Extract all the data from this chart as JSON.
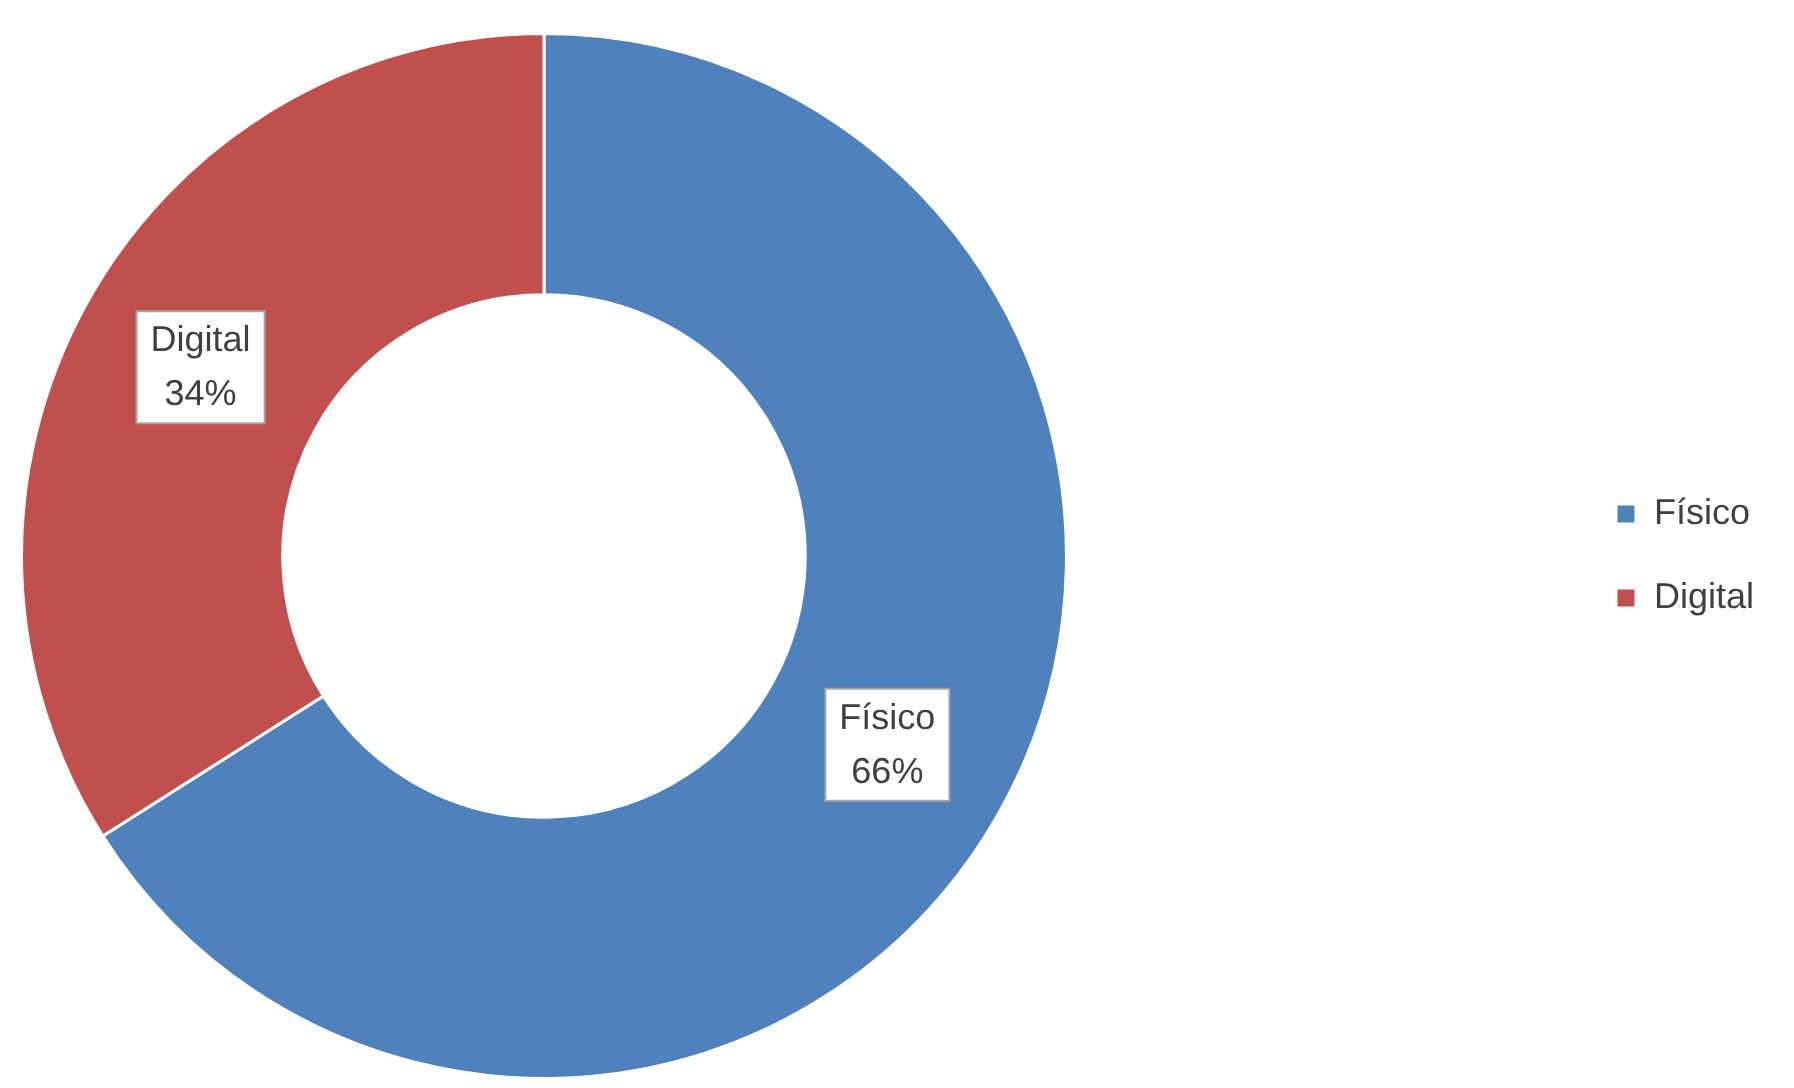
{
  "chart_data": {
    "type": "donut",
    "categories": [
      "Físico",
      "Digital"
    ],
    "values": [
      66,
      34
    ],
    "colors": [
      "#4f81bd",
      "#c0504d"
    ],
    "value_labels": [
      "66%",
      "34%"
    ],
    "legend": "right"
  }
}
